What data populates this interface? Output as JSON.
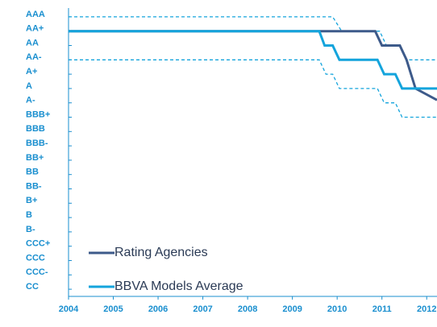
{
  "chart_data": {
    "type": "line",
    "xlim": [
      2004,
      2012.23
    ],
    "xticks": [
      2004,
      2005,
      2006,
      2007,
      2008,
      2009,
      2010,
      2011,
      2012
    ],
    "ylim": [
      0.5,
      20.5
    ],
    "yticks": [
      {
        "value": 20,
        "label": "AAA"
      },
      {
        "value": 19,
        "label": "AA+"
      },
      {
        "value": 18,
        "label": "AA"
      },
      {
        "value": 17,
        "label": "AA-"
      },
      {
        "value": 16,
        "label": "A+"
      },
      {
        "value": 15,
        "label": "A"
      },
      {
        "value": 14,
        "label": "A-"
      },
      {
        "value": 13,
        "label": "BBB+"
      },
      {
        "value": 12,
        "label": "BBB"
      },
      {
        "value": 11,
        "label": "BBB-"
      },
      {
        "value": 10,
        "label": "BB+"
      },
      {
        "value": 9,
        "label": "BB"
      },
      {
        "value": 8,
        "label": "BB-"
      },
      {
        "value": 7,
        "label": "B+"
      },
      {
        "value": 6,
        "label": "B"
      },
      {
        "value": 5,
        "label": "B-"
      },
      {
        "value": 4,
        "label": "CCC+"
      },
      {
        "value": 3,
        "label": "CCC"
      },
      {
        "value": 2,
        "label": "CCC-"
      },
      {
        "value": 1,
        "label": "CC"
      }
    ],
    "grid": false,
    "legend": "lower left",
    "series": [
      {
        "color": "#14a4dc",
        "style": "dashed",
        "x": [
          2004,
          2009.9,
          2010.1,
          2010.95,
          2011.1,
          2011.4,
          2011.55,
          2012.23
        ],
        "values": [
          20,
          20,
          19,
          19,
          18,
          18,
          17,
          17
        ]
      },
      {
        "color": "#14a4dc",
        "style": "dashed",
        "x": [
          2004,
          2009.6,
          2009.75,
          2009.9,
          2010.05,
          2010.9,
          2011.05,
          2011.3,
          2011.45,
          2012.23
        ],
        "values": [
          17,
          17,
          16,
          16,
          15,
          15,
          14,
          14,
          13,
          13
        ]
      },
      {
        "name": "Rating Agencies",
        "color": "#3d5a8a",
        "style": "solid",
        "x": [
          2004,
          2010.85,
          2011.0,
          2011.4,
          2011.55,
          2011.75,
          2012.23
        ],
        "values": [
          19,
          19,
          18,
          18,
          17,
          15,
          14.2
        ]
      },
      {
        "name": "BBVA Models Average",
        "color": "#14a4dc",
        "style": "solid",
        "x": [
          2004,
          2009.6,
          2009.72,
          2009.9,
          2010.05,
          2010.9,
          2011.05,
          2011.3,
          2011.45,
          2012.23
        ],
        "values": [
          19,
          19,
          18,
          18,
          17,
          17,
          16,
          16,
          15,
          15
        ]
      }
    ]
  }
}
